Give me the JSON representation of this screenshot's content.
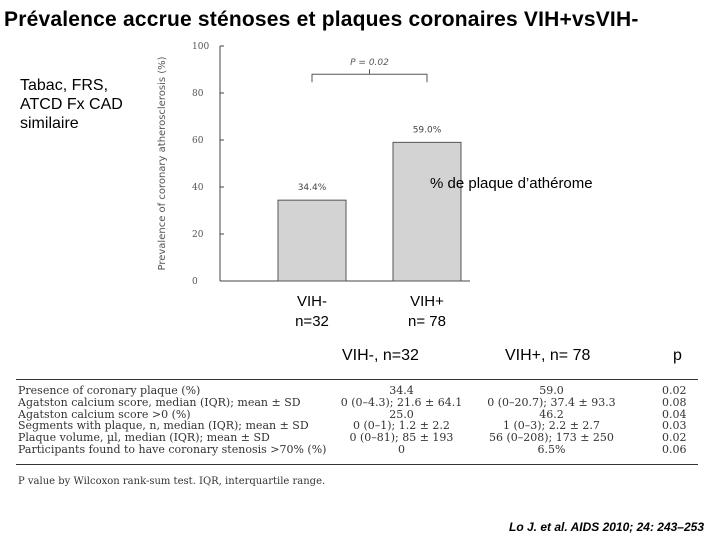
{
  "title": "Prévalence accrue sténoses et plaques coronaires VIH+vsVIH-",
  "side_note": [
    "Tabac, FRS,",
    "ATCD Fx CAD",
    "similaire"
  ],
  "chart_annotation": "% de plaque d’athérome",
  "chart_data": {
    "type": "bar",
    "categories": [
      "VIH-",
      "VIH+"
    ],
    "values": [
      34.4,
      59.0
    ],
    "data_labels": [
      "34.4%",
      "59.0%"
    ],
    "ylabel": "Prevalence of coronary atherosclerosis (%)",
    "ylim": [
      0,
      100
    ],
    "yticks": [
      "0",
      "20",
      "40",
      "60",
      "80",
      "100"
    ],
    "p_value_label": "P = 0.02",
    "bar_color": "#d3d3d3"
  },
  "bar_labels": [
    {
      "name": "VIH-",
      "n": "n=32"
    },
    {
      "name": "VIH+",
      "n": "n= 78"
    }
  ],
  "table": {
    "headers": [
      "VIH-, n=32",
      "VIH+, n= 78",
      "p"
    ],
    "rows": [
      [
        "Presence of coronary plaque (%)",
        "34.4",
        "59.0",
        "0.02"
      ],
      [
        "Agatston calcium score, median (IQR); mean ± SD",
        "0 (0–4.3); 21.6 ± 64.1",
        "0 (0–20.7); 37.4 ± 93.3",
        "0.08"
      ],
      [
        "Agatston calcium score >0 (%)",
        "25.0",
        "46.2",
        "0.04"
      ],
      [
        "Segments with plaque, n, median (IQR); mean ± SD",
        "0 (0–1); 1.2 ± 2.2",
        "1 (0–3); 2.2 ± 2.7",
        "0.03"
      ],
      [
        "Plaque volume, µl, median (IQR); mean ± SD",
        "0 (0–81); 85 ± 193",
        "56 (0–208); 173 ± 250",
        "0.02"
      ],
      [
        "Participants found to have coronary stenosis >70% (%)",
        "0",
        "6.5%",
        "0.06"
      ]
    ]
  },
  "footnote": "P value by Wilcoxon rank-sum test. IQR, interquartile range.",
  "citation": "Lo J. et al. AIDS 2010; 24: 243–253"
}
